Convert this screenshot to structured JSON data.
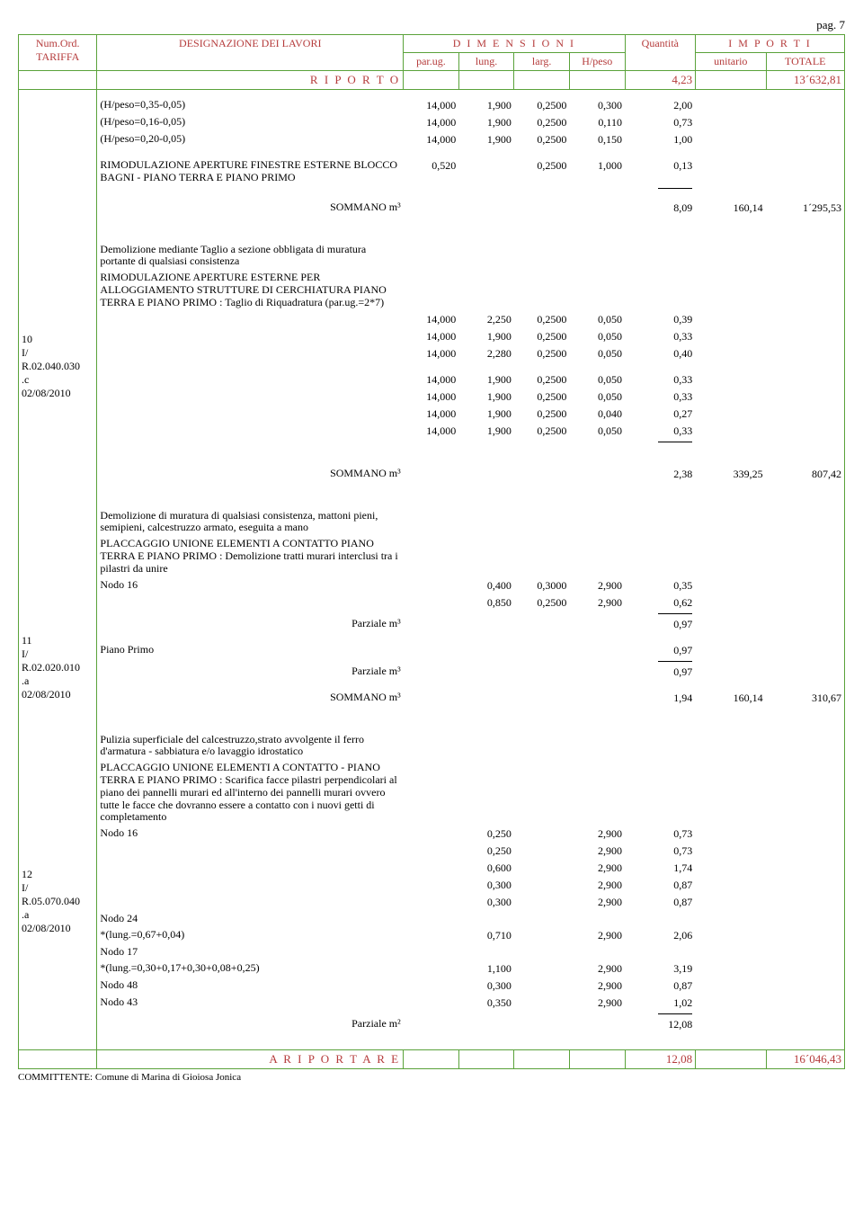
{
  "page_label": "pag. 7",
  "header": {
    "numord": "Num.Ord.",
    "tariffa": "TARIFFA",
    "designazione": "DESIGNAZIONE DEI LAVORI",
    "dimensioni": "D I M E N S I O N I",
    "importi": "I M P O R T I",
    "parug": "par.ug.",
    "lung": "lung.",
    "larg": "larg.",
    "hpeso": "H/peso",
    "quantita": "Quantità",
    "unitario": "unitario",
    "totale": "TOTALE"
  },
  "riporto": {
    "label": "R I P O R T O",
    "qty": "4,23",
    "tot": "13´632,81"
  },
  "block1": {
    "rows": [
      {
        "d": "(H/peso=0,35-0,05)",
        "p": "14,000",
        "l": "1,900",
        "la": "0,2500",
        "h": "0,300",
        "q": "2,00"
      },
      {
        "d": "(H/peso=0,16-0,05)",
        "p": "14,000",
        "l": "1,900",
        "la": "0,2500",
        "h": "0,110",
        "q": "0,73"
      },
      {
        "d": "(H/peso=0,20-0,05)",
        "p": "14,000",
        "l": "1,900",
        "la": "0,2500",
        "h": "0,150",
        "q": "1,00"
      }
    ],
    "text2": "RIMODULAZIONE APERTURE FINESTRE ESTERNE BLOCCO BAGNI - PIANO TERRA E PIANO PRIMO",
    "row2": {
      "p": "0,520",
      "la": "0,2500",
      "h": "1,000",
      "q": "0,13"
    },
    "som": {
      "label": "SOMMANO m³",
      "q": "8,09",
      "u": "160,14",
      "t": "1´295,53"
    }
  },
  "item10": {
    "num": "10",
    "code1": "I/",
    "code2": "R.02.040.030",
    "code3": ".c",
    "date": "02/08/2010",
    "title": "Demolizione mediante Taglio a sezione obbligata di muratura portante di qualsiasi consistenza",
    "desc": "RIMODULAZIONE APERTURE ESTERNE PER ALLOGGIAMENTO STRUTTURE DI CERCHIATURA PIANO TERRA E PIANO PRIMO : Taglio di Riquadratura (par.ug.=2*7)",
    "rows1": [
      {
        "p": "14,000",
        "l": "2,250",
        "la": "0,2500",
        "h": "0,050",
        "q": "0,39"
      },
      {
        "p": "14,000",
        "l": "1,900",
        "la": "0,2500",
        "h": "0,050",
        "q": "0,33"
      },
      {
        "p": "14,000",
        "l": "2,280",
        "la": "0,2500",
        "h": "0,050",
        "q": "0,40"
      }
    ],
    "rows2": [
      {
        "p": "14,000",
        "l": "1,900",
        "la": "0,2500",
        "h": "0,050",
        "q": "0,33"
      },
      {
        "p": "14,000",
        "l": "1,900",
        "la": "0,2500",
        "h": "0,050",
        "q": "0,33"
      },
      {
        "p": "14,000",
        "l": "1,900",
        "la": "0,2500",
        "h": "0,040",
        "q": "0,27"
      },
      {
        "p": "14,000",
        "l": "1,900",
        "la": "0,2500",
        "h": "0,050",
        "q": "0,33"
      }
    ],
    "som": {
      "label": "SOMMANO m³",
      "q": "2,38",
      "u": "339,25",
      "t": "807,42"
    }
  },
  "item11": {
    "num": "11",
    "code1": "I/",
    "code2": "R.02.020.010",
    "code3": ".a",
    "date": "02/08/2010",
    "title": "Demolizione di muratura di qualsiasi consistenza, mattoni pieni, semipieni, calcestruzzo armato, eseguita a mano",
    "desc": "PLACCAGGIO UNIONE ELEMENTI A CONTATTO PIANO TERRA E PIANO PRIMO : Demolizione tratti murari interclusi tra i pilastri da unire",
    "nodo": "Nodo 16",
    "rows": [
      {
        "l": "0,400",
        "la": "0,3000",
        "h": "2,900",
        "q": "0,35"
      },
      {
        "l": "0,850",
        "la": "0,2500",
        "h": "2,900",
        "q": "0,62"
      }
    ],
    "parz1": {
      "label": "Parziale m³",
      "q": "0,97"
    },
    "piano": "Piano Primo",
    "pianoq": "0,97",
    "parz2": {
      "label": "Parziale m³",
      "q": "0,97"
    },
    "som": {
      "label": "SOMMANO m³",
      "q": "1,94",
      "u": "160,14",
      "t": "310,67"
    }
  },
  "item12": {
    "num": "12",
    "code1": "I/",
    "code2": "R.05.070.040",
    "code3": ".a",
    "date": "02/08/2010",
    "title": "Pulizia superficiale del calcestruzzo,strato avvolgente il ferro d'armatura - sabbiatura e/o lavaggio idrostatico",
    "desc": "PLACCAGGIO UNIONE ELEMENTI A CONTATTO - PIANO TERRA E PIANO PRIMO : Scarifica facce pilastri perpendicolari al piano dei pannelli murari ed all'interno dei pannelli murari ovvero tutte le facce che dovranno essere a contatto con i nuovi getti di completamento",
    "rows": [
      {
        "d": "Nodo 16",
        "l": "0,250",
        "h": "2,900",
        "q": "0,73"
      },
      {
        "d": "",
        "l": "0,250",
        "h": "2,900",
        "q": "0,73"
      },
      {
        "d": "",
        "l": "0,600",
        "h": "2,900",
        "q": "1,74"
      },
      {
        "d": "",
        "l": "0,300",
        "h": "2,900",
        "q": "0,87"
      },
      {
        "d": "",
        "l": "0,300",
        "h": "2,900",
        "q": "0,87"
      },
      {
        "d": "Nodo 24",
        "l": "",
        "h": "",
        "q": ""
      },
      {
        "d": " *(lung.=0,67+0,04)",
        "l": "0,710",
        "h": "2,900",
        "q": "2,06"
      },
      {
        "d": "Nodo 17",
        "l": "",
        "h": "",
        "q": ""
      },
      {
        "d": " *(lung.=0,30+0,17+0,30+0,08+0,25)",
        "l": "1,100",
        "h": "2,900",
        "q": "3,19"
      },
      {
        "d": "Nodo 48",
        "l": "0,300",
        "h": "2,900",
        "q": "0,87"
      },
      {
        "d": "Nodo 43",
        "l": "0,350",
        "h": "2,900",
        "q": "1,02"
      }
    ],
    "parz": {
      "label": "Parziale m²",
      "q": "12,08"
    }
  },
  "ariportare": {
    "label": "A  R I P O R T A R E",
    "q": "12,08",
    "t": "16´046,43"
  },
  "committente": "COMMITTENTE: Comune di Marina di Gioiosa Jonica"
}
